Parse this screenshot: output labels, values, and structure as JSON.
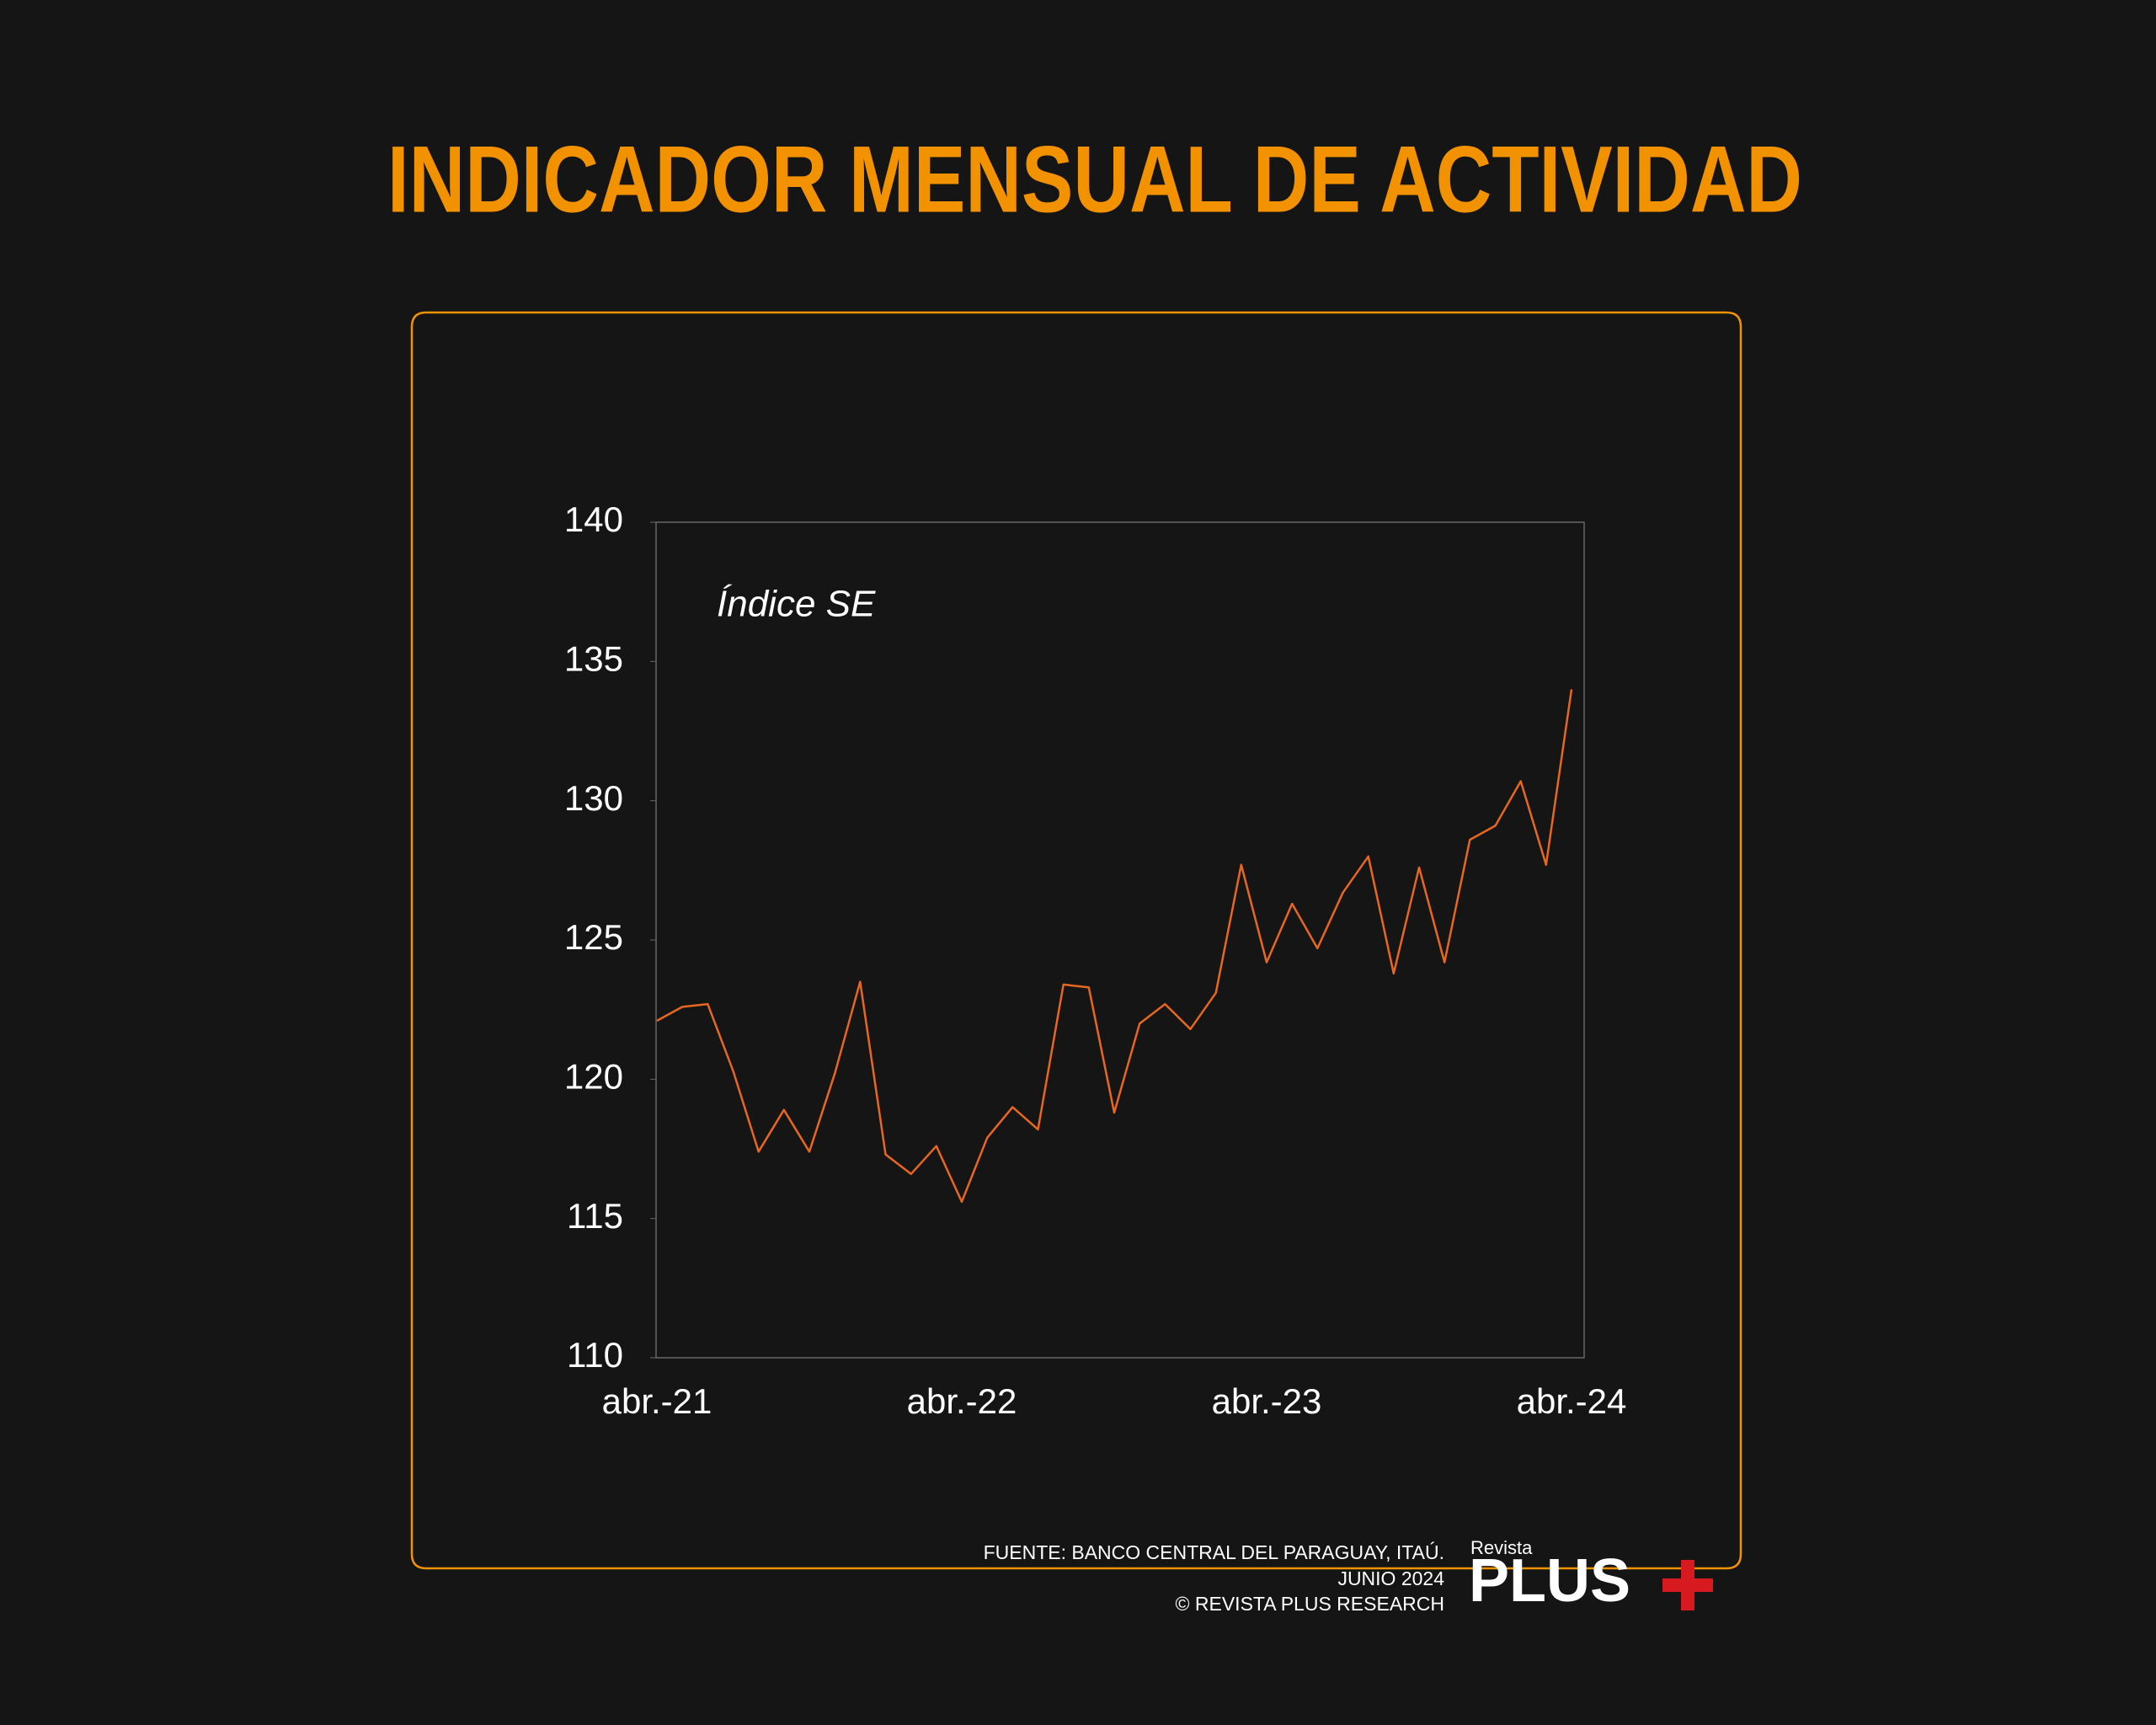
{
  "chart_data": {
    "type": "line",
    "title": "INDICADOR MENSUAL DE ACTIVIDAD",
    "annotation": "Índice SE",
    "categories": [
      "abr.-21",
      null,
      null,
      null,
      null,
      null,
      null,
      null,
      null,
      null,
      null,
      null,
      "abr.-22",
      null,
      null,
      null,
      null,
      null,
      null,
      null,
      null,
      null,
      null,
      null,
      "abr.-23",
      null,
      null,
      null,
      null,
      null,
      null,
      null,
      null,
      null,
      null,
      null,
      "abr.-24"
    ],
    "series": [
      {
        "name": "Índice SE",
        "color": "#e8671e",
        "values": [
          122.1,
          122.6,
          122.7,
          120.3,
          117.4,
          118.9,
          117.4,
          120.2,
          123.5,
          117.3,
          116.6,
          117.6,
          115.6,
          117.9,
          119.0,
          118.2,
          123.4,
          123.3,
          118.8,
          122.0,
          122.7,
          121.8,
          123.1,
          127.7,
          124.2,
          126.3,
          124.7,
          126.7,
          128.0,
          123.8,
          127.6,
          124.2,
          128.6,
          129.1,
          130.7,
          127.7,
          134.0
        ]
      }
    ],
    "ylim": [
      110,
      140
    ],
    "yticks": [
      110,
      115,
      120,
      125,
      130,
      135,
      140
    ]
  },
  "footer": {
    "source": [
      "FUENTE: BANCO CENTRAL DEL PARAGUAY, ITAÚ.",
      "JUNIO 2024",
      "© REVISTA PLUS RESEARCH"
    ],
    "logo": {
      "small": "Revista",
      "big": "PLUS"
    }
  }
}
